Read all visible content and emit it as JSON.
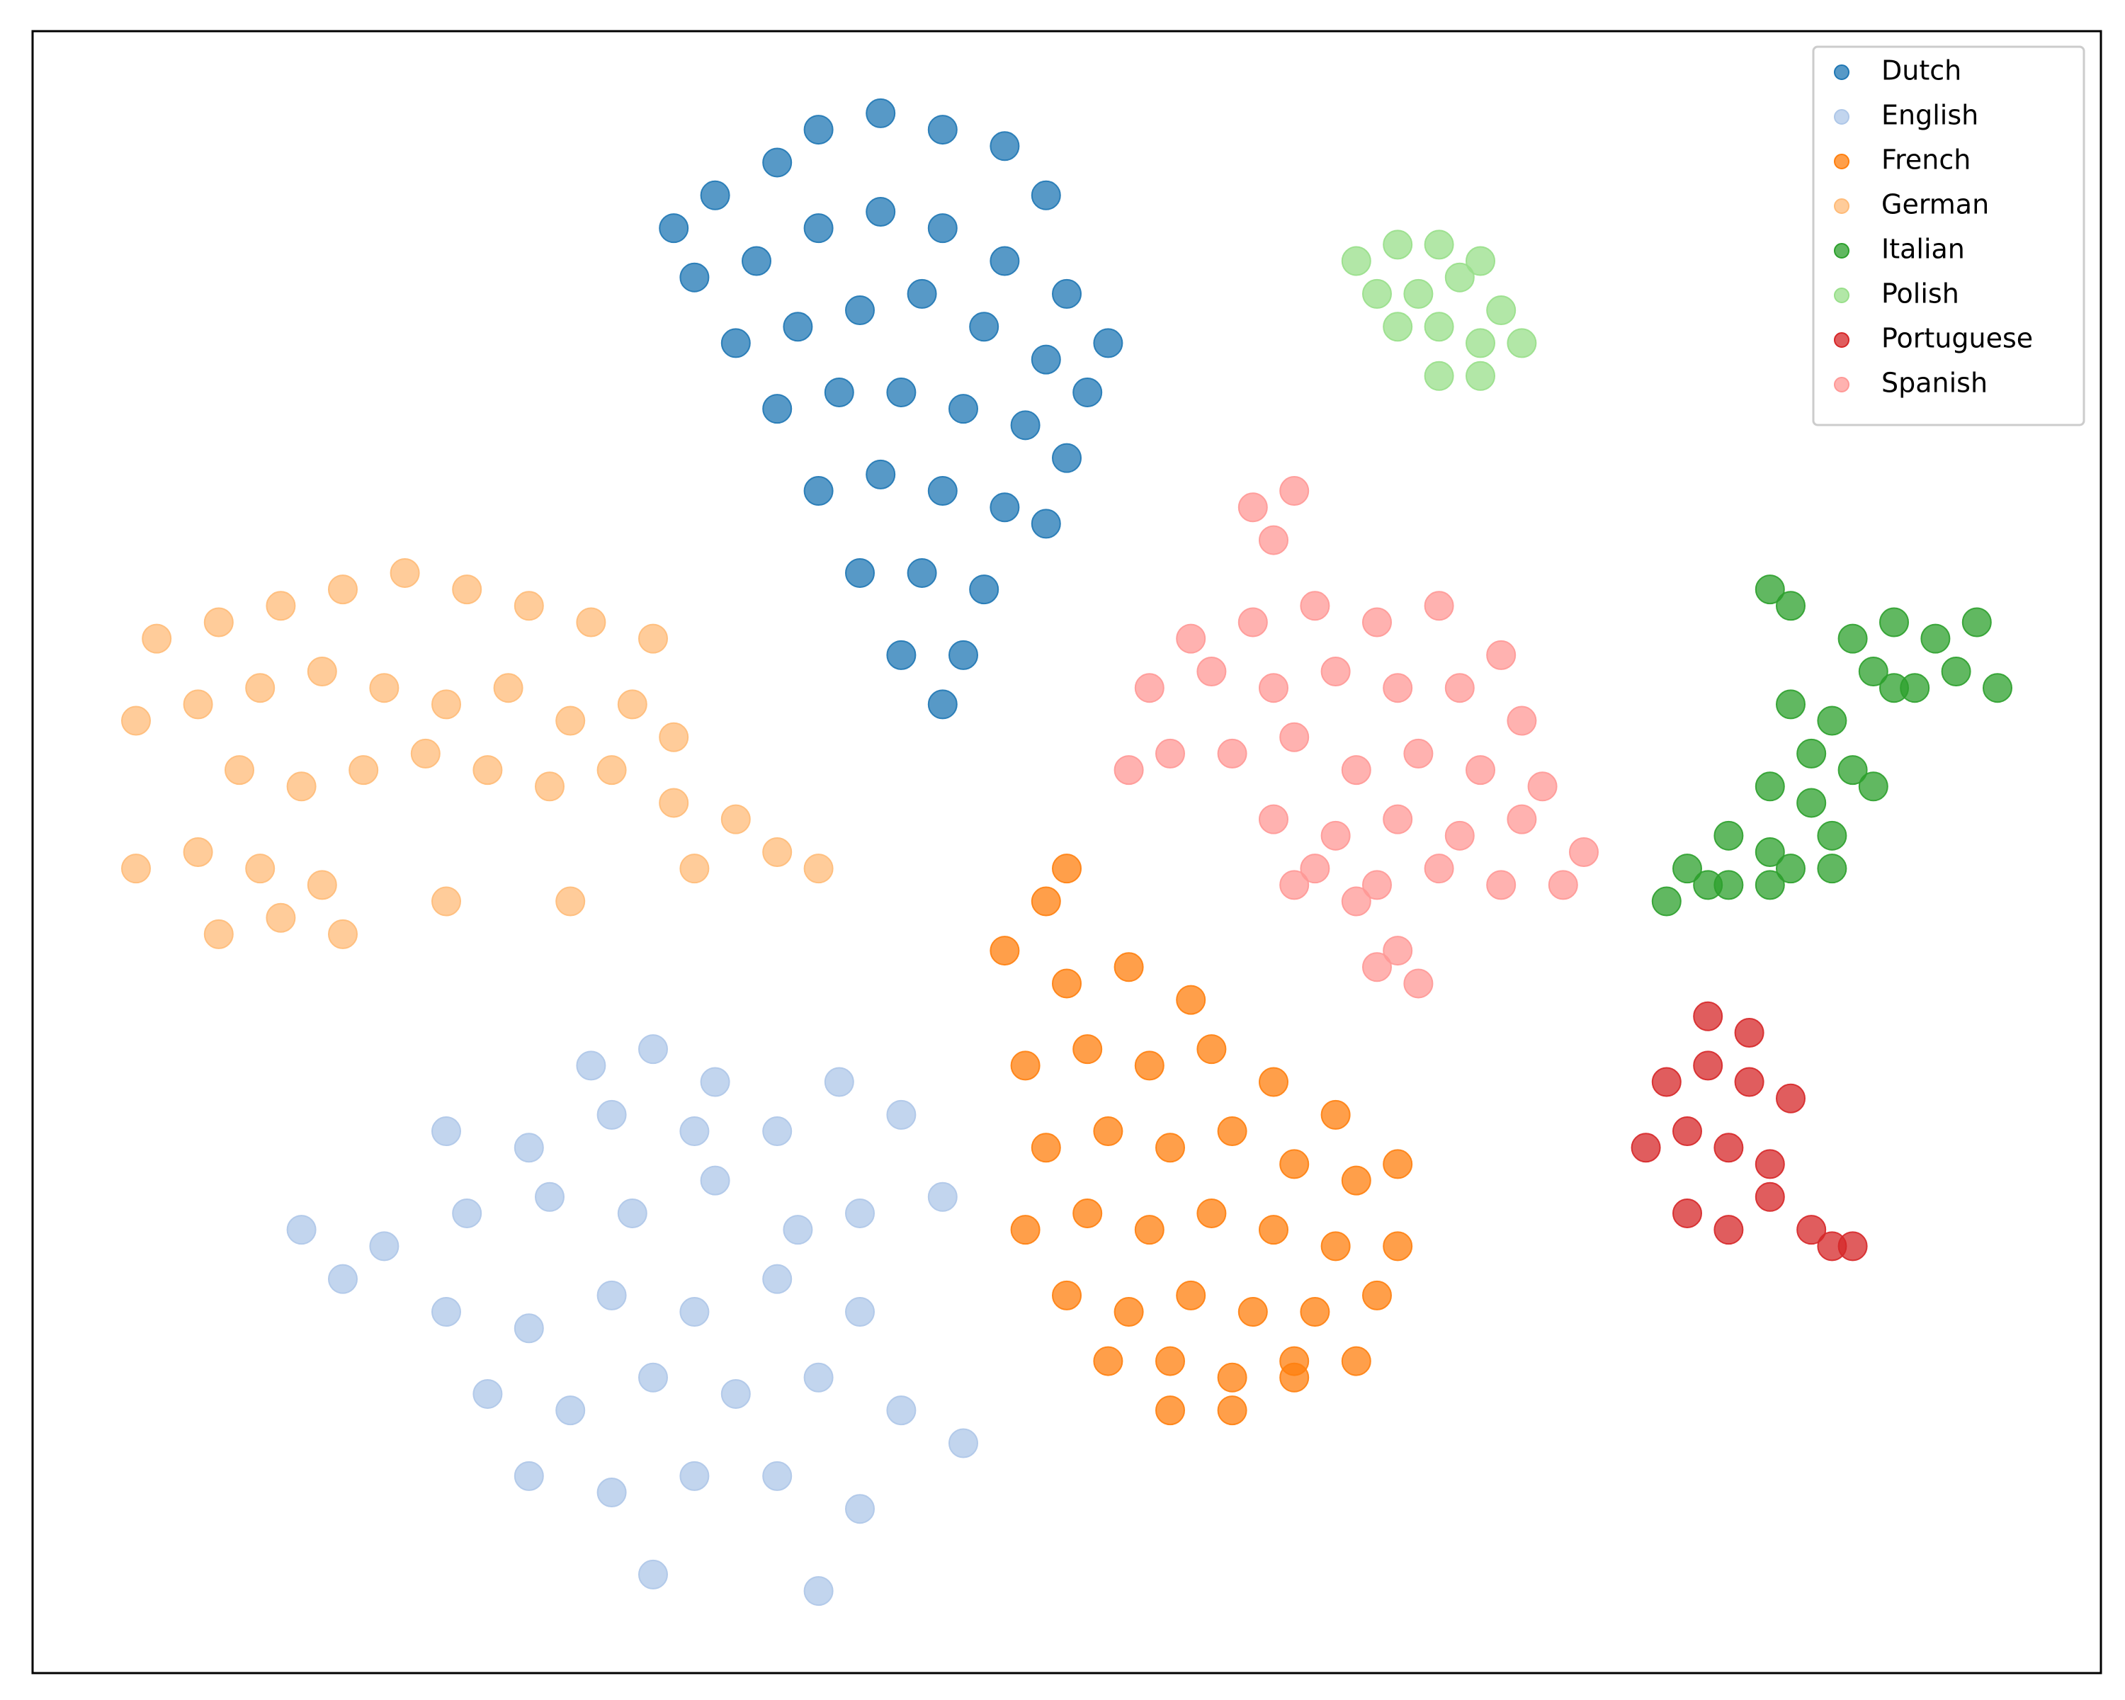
{
  "chart_data": {
    "type": "scatter",
    "xlim": [
      0,
      100
    ],
    "ylim": [
      0,
      100
    ],
    "legend": "upper right",
    "series": [
      {
        "name": "Dutch",
        "color": "#1f77b4",
        "x": [
          31,
          33,
          36,
          38,
          41,
          44,
          47,
          49,
          32,
          35,
          38,
          41,
          44,
          47,
          50,
          52,
          34,
          37,
          40,
          43,
          46,
          49,
          51,
          36,
          39,
          42,
          45,
          48,
          50,
          38,
          41,
          44,
          47,
          49,
          40,
          43,
          46,
          42,
          45,
          44
        ],
        "y": [
          88,
          90,
          92,
          94,
          95,
          94,
          93,
          90,
          85,
          86,
          88,
          89,
          88,
          86,
          84,
          81,
          81,
          82,
          83,
          84,
          82,
          80,
          78,
          77,
          78,
          78,
          77,
          76,
          74,
          72,
          73,
          72,
          71,
          70,
          67,
          67,
          66,
          62,
          62,
          59
        ]
      },
      {
        "name": "English",
        "color": "#aec7e8",
        "x": [
          27,
          30,
          33,
          20,
          24,
          28,
          32,
          36,
          39,
          42,
          13,
          17,
          21,
          25,
          29,
          33,
          37,
          40,
          44,
          15,
          20,
          24,
          28,
          32,
          36,
          40,
          22,
          26,
          30,
          34,
          38,
          42,
          45,
          24,
          28,
          32,
          36,
          40,
          38,
          30
        ],
        "y": [
          37,
          38,
          36,
          33,
          32,
          34,
          33,
          33,
          36,
          34,
          27,
          26,
          28,
          29,
          28,
          30,
          27,
          28,
          29,
          24,
          22,
          21,
          23,
          22,
          24,
          22,
          17,
          16,
          18,
          17,
          18,
          16,
          14,
          12,
          11,
          12,
          12,
          10,
          5,
          6
        ]
      },
      {
        "name": "French",
        "color": "#ff7f0e",
        "x": [
          50,
          53,
          56,
          48,
          51,
          54,
          57,
          60,
          63,
          49,
          52,
          55,
          58,
          61,
          64,
          66,
          48,
          51,
          54,
          57,
          60,
          63,
          66,
          50,
          53,
          56,
          59,
          62,
          65,
          52,
          55,
          58,
          61,
          64,
          55,
          58,
          61,
          47,
          49,
          50
        ],
        "y": [
          42,
          43,
          41,
          37,
          38,
          37,
          38,
          36,
          34,
          32,
          33,
          32,
          33,
          31,
          30,
          31,
          27,
          28,
          27,
          28,
          27,
          26,
          26,
          23,
          22,
          23,
          22,
          22,
          23,
          19,
          19,
          18,
          19,
          19,
          16,
          16,
          18,
          44,
          47,
          49
        ]
      },
      {
        "name": "German",
        "color": "#ffbb78",
        "x": [
          6,
          9,
          12,
          15,
          18,
          21,
          24,
          27,
          30,
          5,
          8,
          11,
          14,
          17,
          20,
          23,
          26,
          29,
          31,
          10,
          13,
          16,
          19,
          22,
          25,
          28,
          31,
          34,
          36,
          5,
          8,
          11,
          14,
          20,
          26,
          32,
          38,
          9,
          12,
          15
        ],
        "y": [
          63,
          64,
          65,
          66,
          67,
          66,
          65,
          64,
          63,
          58,
          59,
          60,
          61,
          60,
          59,
          60,
          58,
          59,
          57,
          55,
          54,
          55,
          56,
          55,
          54,
          55,
          53,
          52,
          50,
          49,
          50,
          49,
          48,
          47,
          47,
          49,
          49,
          45,
          46,
          45
        ]
      },
      {
        "name": "Italian",
        "color": "#2ca02c",
        "x": [
          84,
          85,
          88,
          90,
          92,
          94,
          89,
          91,
          93,
          95,
          85,
          87,
          90,
          86,
          88,
          84,
          86,
          89,
          82,
          84,
          87,
          80,
          82,
          85,
          79,
          81,
          84,
          87
        ],
        "y": [
          66,
          65,
          63,
          64,
          63,
          64,
          61,
          60,
          61,
          60,
          59,
          58,
          60,
          56,
          55,
          54,
          53,
          54,
          51,
          50,
          51,
          49,
          48,
          49,
          47,
          48,
          48,
          49
        ]
      },
      {
        "name": "Polish",
        "color": "#98df8a",
        "x": [
          64,
          66,
          68,
          70,
          65,
          67,
          69,
          71,
          66,
          68,
          70,
          72,
          68,
          70
        ],
        "y": [
          86,
          87,
          87,
          86,
          84,
          84,
          85,
          83,
          82,
          82,
          81,
          81,
          79,
          79
        ]
      },
      {
        "name": "Portuguese",
        "color": "#d62728",
        "x": [
          81,
          83,
          79,
          81,
          83,
          85,
          78,
          80,
          82,
          84,
          80,
          82,
          84,
          86,
          87,
          88
        ],
        "y": [
          40,
          39,
          36,
          37,
          36,
          35,
          32,
          33,
          32,
          31,
          28,
          27,
          29,
          27,
          26,
          26
        ]
      },
      {
        "name": "Spanish",
        "color": "#ff9896",
        "x": [
          59,
          61,
          60,
          56,
          59,
          62,
          65,
          68,
          71,
          54,
          57,
          60,
          63,
          66,
          69,
          72,
          53,
          55,
          58,
          61,
          64,
          67,
          70,
          73,
          60,
          63,
          66,
          69,
          72,
          75,
          62,
          65,
          68,
          71,
          74,
          65,
          67,
          66,
          61,
          64
        ],
        "y": [
          71,
          72,
          69,
          63,
          64,
          65,
          64,
          65,
          62,
          60,
          61,
          60,
          61,
          60,
          60,
          58,
          55,
          56,
          56,
          57,
          55,
          56,
          55,
          54,
          52,
          51,
          52,
          51,
          52,
          50,
          49,
          48,
          49,
          48,
          48,
          43,
          42,
          44,
          48,
          47
        ]
      }
    ]
  }
}
